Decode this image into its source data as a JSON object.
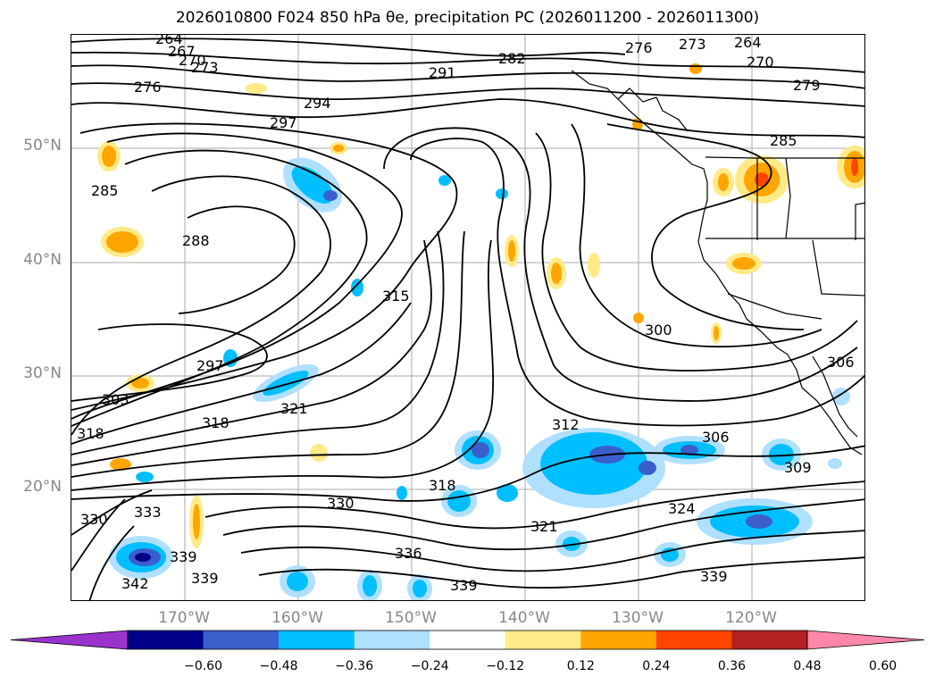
{
  "title": "2026010800 F024 850 hPa θe, precipitation PC (2026011200 - 2026011300)",
  "lat_labels": [
    "50°N",
    "40°N",
    "30°N",
    "20°N"
  ],
  "lon_labels": [
    "170°W",
    "160°W",
    "150°W",
    "140°W",
    "130°W",
    "120°W"
  ],
  "colorbar": {
    "colors": [
      "#9933cc",
      "#000088",
      "#3a5fcd",
      "#00bfff",
      "#b0e0ff",
      "#ffffff",
      "#ffea88",
      "#ffa500",
      "#ff4500",
      "#b22222",
      "#ff88aa"
    ],
    "ticks": [
      "−0.60",
      "−0.48",
      "−0.36",
      "−0.24",
      "−0.12",
      "0.12",
      "0.24",
      "0.36",
      "0.48",
      "0.60"
    ]
  },
  "contour_labels": [
    "264",
    "267",
    "270",
    "273",
    "276",
    "276",
    "273",
    "264",
    "270",
    "279",
    "282",
    "291",
    "294",
    "297",
    "285",
    "285",
    "288",
    "315",
    "300",
    "297",
    "303",
    "318",
    "318",
    "321",
    "306",
    "309",
    "306",
    "312",
    "318",
    "330",
    "333",
    "330",
    "339",
    "339",
    "342",
    "336",
    "339",
    "321",
    "324",
    "339"
  ],
  "palette": {
    "positive": [
      "#ffea88",
      "#ffa500",
      "#ff4500"
    ],
    "negative": [
      "#b0e0ff",
      "#00bfff",
      "#3a5fcd"
    ]
  }
}
